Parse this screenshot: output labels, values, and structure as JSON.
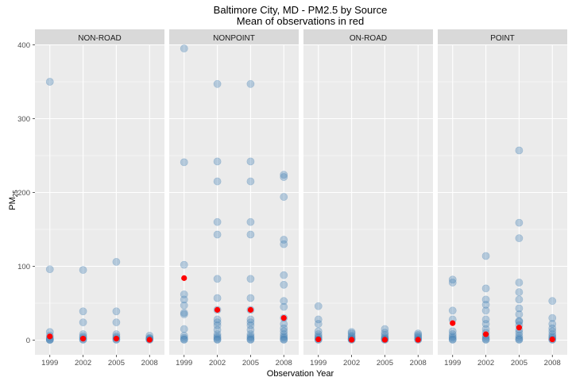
{
  "chart_data": {
    "type": "scatter",
    "title": "Baltimore City, MD - PM2.5 by Source",
    "subtitle": "Mean of observations in red",
    "xlabel": "Observation Year",
    "ylabel_main": "PM",
    "ylabel_sub": "25",
    "ylim": [
      0,
      400
    ],
    "yticks": [
      0,
      100,
      200,
      300,
      400
    ],
    "xticks": [
      1999,
      2002,
      2005,
      2008
    ],
    "grid": true,
    "colors": {
      "points": "#4682b4",
      "mean": "#ff0000",
      "panel_bg": "#ebebeb",
      "strip_bg": "#d9d9d9",
      "grid": "#ffffff"
    },
    "panels": [
      {
        "name": "NON-ROAD",
        "observations": [
          {
            "x": 1999,
            "y": [
              350,
              96,
              11,
              6,
              3,
              1,
              0.5,
              0.2
            ]
          },
          {
            "x": 2002,
            "y": [
              95,
              39,
              24,
              8,
              5,
              3,
              1,
              0.5
            ]
          },
          {
            "x": 2005,
            "y": [
              106,
              39,
              24,
              8,
              5,
              3,
              1,
              0.5
            ]
          },
          {
            "x": 2008,
            "y": [
              6,
              3,
              2,
              1,
              0.5
            ]
          }
        ],
        "means": [
          {
            "x": 1999,
            "y": 5
          },
          {
            "x": 2002,
            "y": 2
          },
          {
            "x": 2005,
            "y": 2
          },
          {
            "x": 2008,
            "y": 0.5
          }
        ]
      },
      {
        "name": "NONPOINT",
        "observations": [
          {
            "x": 1999,
            "y": [
              395,
              241,
              102,
              62,
              55,
              47,
              37,
              35,
              15,
              6,
              3,
              1,
              0.5
            ]
          },
          {
            "x": 2002,
            "y": [
              347,
              242,
              215,
              160,
              143,
              83,
              57,
              41,
              28,
              24,
              20,
              14,
              8,
              5,
              3,
              1,
              0.5
            ]
          },
          {
            "x": 2005,
            "y": [
              347,
              242,
              215,
              160,
              143,
              83,
              57,
              41,
              28,
              24,
              20,
              14,
              8,
              5,
              3,
              1,
              0.5
            ]
          },
          {
            "x": 2008,
            "y": [
              224,
              221,
              194,
              136,
              130,
              88,
              75,
              53,
              45,
              30,
              22,
              16,
              12,
              8,
              5,
              3,
              1,
              0.5
            ]
          }
        ],
        "means": [
          {
            "x": 1999,
            "y": 84
          },
          {
            "x": 2002,
            "y": 41
          },
          {
            "x": 2005,
            "y": 41
          },
          {
            "x": 2008,
            "y": 30
          }
        ]
      },
      {
        "name": "ON-ROAD",
        "observations": [
          {
            "x": 1999,
            "y": [
              46,
              28,
              22,
              12,
              8,
              5,
              3,
              1,
              0.5
            ]
          },
          {
            "x": 2002,
            "y": [
              11,
              9,
              6,
              4,
              2,
              1,
              0.5
            ]
          },
          {
            "x": 2005,
            "y": [
              15,
              10,
              7,
              4,
              2,
              1,
              0.5
            ]
          },
          {
            "x": 2008,
            "y": [
              9,
              7,
              5,
              3,
              1,
              0.5
            ]
          }
        ],
        "means": [
          {
            "x": 1999,
            "y": 1
          },
          {
            "x": 2002,
            "y": 0.5
          },
          {
            "x": 2005,
            "y": 0.5
          },
          {
            "x": 2008,
            "y": 0.5
          }
        ]
      },
      {
        "name": "POINT",
        "observations": [
          {
            "x": 1999,
            "y": [
              82,
              78,
              40,
              28,
              12,
              8,
              5,
              3,
              1,
              0.5
            ]
          },
          {
            "x": 2002,
            "y": [
              114,
              70,
              55,
              48,
              40,
              28,
              22,
              15,
              10,
              6,
              3,
              1,
              0.5
            ]
          },
          {
            "x": 2005,
            "y": [
              257,
              159,
              138,
              78,
              65,
              55,
              43,
              35,
              26,
              25,
              20,
              14,
              10,
              6,
              3,
              1,
              0.5
            ]
          },
          {
            "x": 2008,
            "y": [
              53,
              30,
              22,
              16,
              12,
              8,
              5,
              3,
              1,
              0.5
            ]
          }
        ],
        "means": [
          {
            "x": 1999,
            "y": 23
          },
          {
            "x": 2002,
            "y": 8
          },
          {
            "x": 2005,
            "y": 17
          },
          {
            "x": 2008,
            "y": 1
          }
        ]
      }
    ]
  }
}
